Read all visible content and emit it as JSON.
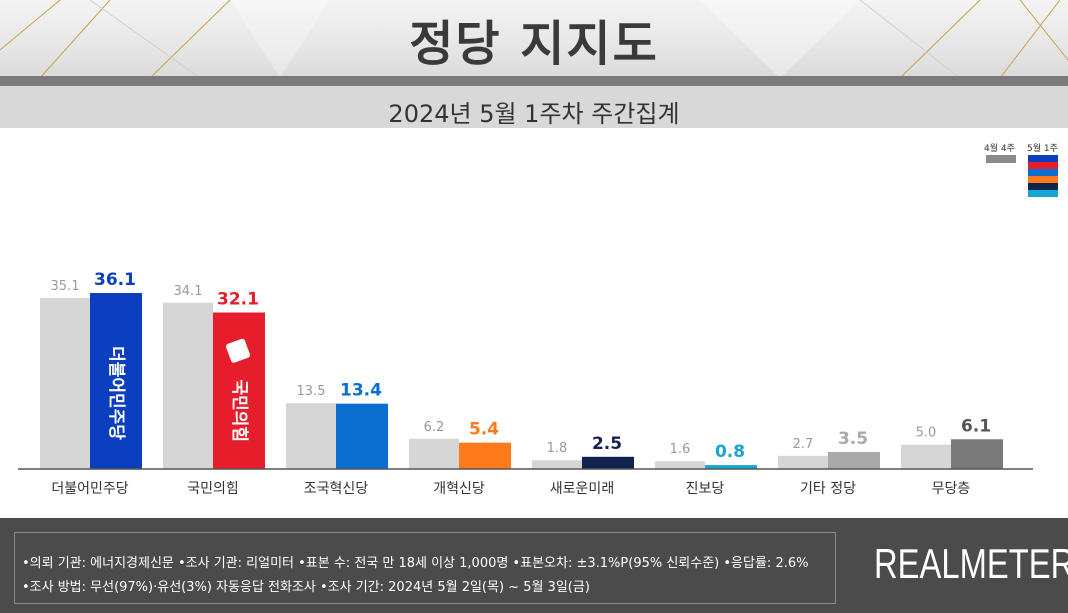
{
  "header": {
    "title": "정당 지지도",
    "subtitle": "2024년 5월 1주차 주간집계"
  },
  "legend": {
    "prev_label": "4월 4주",
    "cur_label": "5월 1주"
  },
  "colors": {
    "prev_bar": "#d6d6d6",
    "axis": "#555555"
  },
  "chart_data": {
    "type": "bar",
    "title": "정당 지지도",
    "subtitle": "2024년 5월 1주차 주간집계",
    "categories": [
      "더불어민주당",
      "국민의힘",
      "조국혁신당",
      "개혁신당",
      "새로운미래",
      "진보당",
      "기타 정당",
      "무당층"
    ],
    "series": [
      {
        "name": "4월 4주",
        "values": [
          35.1,
          34.1,
          13.5,
          6.2,
          1.8,
          1.6,
          2.7,
          5.0
        ]
      },
      {
        "name": "5월 1주",
        "values": [
          36.1,
          32.1,
          13.4,
          5.4,
          2.5,
          0.8,
          3.5,
          6.1
        ],
        "colors": [
          "#0b3fbf",
          "#e61e2b",
          "#0a6fd0",
          "#ff7a1a",
          "#13234f",
          "#16a6d6",
          "#a9a9a9",
          "#7a7a7a"
        ]
      }
    ],
    "bar_logos": [
      "더불어민주당",
      "국민의힘"
    ],
    "ylim": [
      0,
      45
    ],
    "xlabel": "",
    "ylabel": ""
  },
  "footer": {
    "line1": "•의뢰 기관: 에너지경제신문  •조사 기관: 리얼미터 •표본 수: 전국 만 18세 이상 1,000명 •표본오차: ±3.1%P(95% 신뢰수준) •응답률: 2.6%",
    "line2": "•조사 방법: 무선(97%)·유선(3%) 자동응답 전화조사 •조사 기간: 2024년 5월 2일(목) ~ 5월 3일(금)",
    "brand": "REALMETER"
  }
}
